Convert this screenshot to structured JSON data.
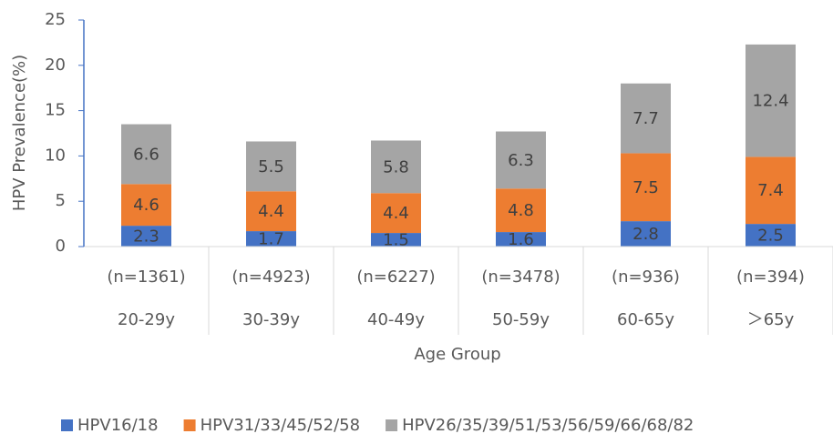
{
  "chart_data": {
    "type": "stacked_bar",
    "categories": [
      "20-29y",
      "30-39y",
      "40-49y",
      "50-59y",
      "60-65y",
      "＞65y"
    ],
    "category_notes": [
      "(n=1361)",
      "(n=4923)",
      "(n=6227)",
      "(n=3478)",
      "(n=936)",
      "(n=394)"
    ],
    "series": [
      {
        "name": "HPV16/18",
        "color": "#4472c4",
        "values": [
          2.3,
          1.7,
          1.5,
          1.6,
          2.8,
          2.5
        ]
      },
      {
        "name": "HPV31/33/45/52/58",
        "color": "#ed7d31",
        "values": [
          4.6,
          4.4,
          4.4,
          4.8,
          7.5,
          7.4
        ]
      },
      {
        "name": "HPV26/35/39/51/53/56/59/66/68/82",
        "color": "#a5a5a5",
        "values": [
          6.6,
          5.5,
          5.8,
          6.3,
          7.7,
          12.4
        ]
      }
    ],
    "ylabel": "HPV Prevalence(%)",
    "xlabel": "Age Group",
    "ylim": [
      0,
      25
    ],
    "yticks": [
      0,
      5,
      10,
      15,
      20,
      25
    ],
    "grid": false,
    "legend": "bottom"
  }
}
